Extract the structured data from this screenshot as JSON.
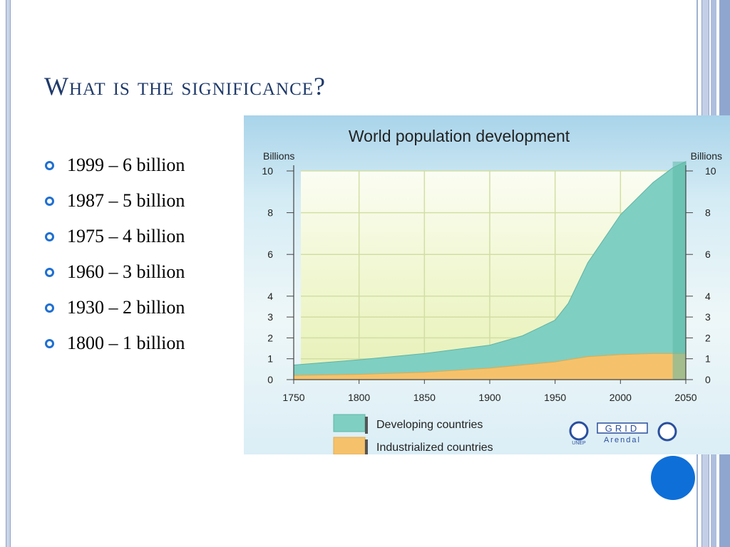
{
  "slide": {
    "title": "What is the significance?",
    "bullets": [
      "1999 – 6 billion",
      "1987 – 5 billion",
      "1975 – 4 billion",
      "1960 – 3 billion",
      "1930 – 2 billion",
      "1800 – 1 billion"
    ]
  },
  "chart_data": {
    "type": "area",
    "title": "World population development",
    "ylabel_left": "Billions",
    "ylabel_right": "Billions",
    "x": [
      1750,
      1800,
      1850,
      1900,
      1925,
      1950,
      1960,
      1975,
      2000,
      2025,
      2040,
      2050
    ],
    "series": [
      {
        "name": "Industrialized countries",
        "values": [
          0.2,
          0.25,
          0.35,
          0.55,
          0.7,
          0.85,
          0.95,
          1.1,
          1.2,
          1.25,
          1.25,
          1.25
        ]
      },
      {
        "name": "Developing countries",
        "values": [
          0.5,
          0.7,
          0.9,
          1.1,
          1.4,
          2.0,
          2.7,
          4.5,
          6.7,
          8.2,
          8.9,
          9.2
        ]
      }
    ],
    "xlim": [
      1750,
      2050
    ],
    "ylim": [
      0,
      10
    ],
    "x_ticks": [
      "1750",
      "1800",
      "1850",
      "1900",
      "1950",
      "2000",
      "2050"
    ],
    "y_ticks_left": [
      "0",
      "1",
      "2",
      "3",
      "4",
      "6",
      "8",
      "10"
    ],
    "y_ticks_right": [
      "0",
      "1",
      "2",
      "3",
      "4",
      "6",
      "8",
      "10"
    ],
    "legend": [
      "Developing countries",
      "Industrialized countries"
    ],
    "logos": [
      "UNEP",
      "GRID",
      "Arendal"
    ],
    "colors": {
      "developing": "#7fcfc2",
      "industrialized": "#f5c26b"
    }
  }
}
